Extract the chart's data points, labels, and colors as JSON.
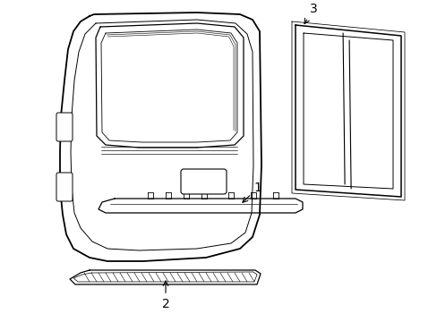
{
  "bg_color": "#ffffff",
  "line_color": "#000000",
  "label_1": "1",
  "label_2": "2",
  "label_3": "3",
  "label_fontsize": 10
}
